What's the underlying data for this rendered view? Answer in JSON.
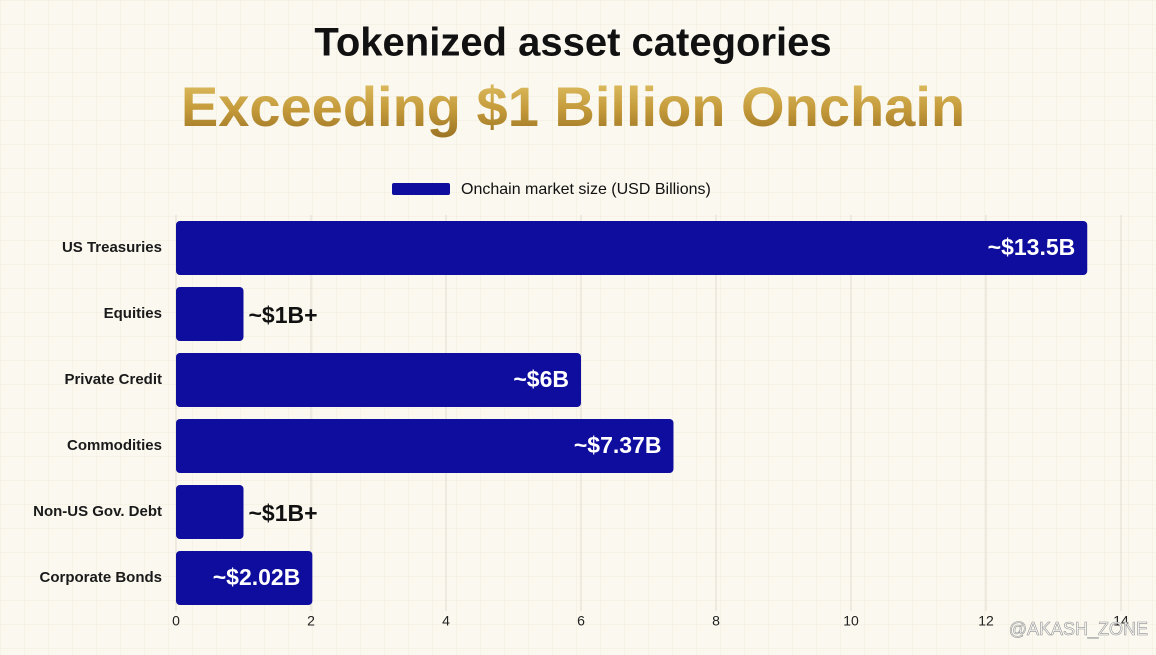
{
  "chart_data": {
    "type": "bar",
    "orientation": "horizontal",
    "title": "Tokenized asset categories",
    "subtitle": "Exceeding $1 Billion Onchain",
    "categories": [
      "US Treasuries",
      "Equities",
      "Private Credit",
      "Commodities",
      "Non-US Gov. Debt",
      "Corporate Bonds"
    ],
    "series": [
      {
        "name": "Onchain market size (USD Billions)",
        "color": "#0f0d9e",
        "values": [
          13.5,
          1,
          6,
          7.37,
          1,
          2.02
        ],
        "value_labels": [
          "~$13.5B",
          "~$1B+",
          "~$6B",
          "~$7.37B",
          "~$1B+",
          "~$2.02B"
        ]
      }
    ],
    "xlim": [
      0,
      14
    ],
    "xticks": [
      0,
      2,
      4,
      6,
      8,
      10,
      12,
      14
    ],
    "grid": true,
    "legend": "top",
    "watermark": "@AKASH_ZONE"
  }
}
